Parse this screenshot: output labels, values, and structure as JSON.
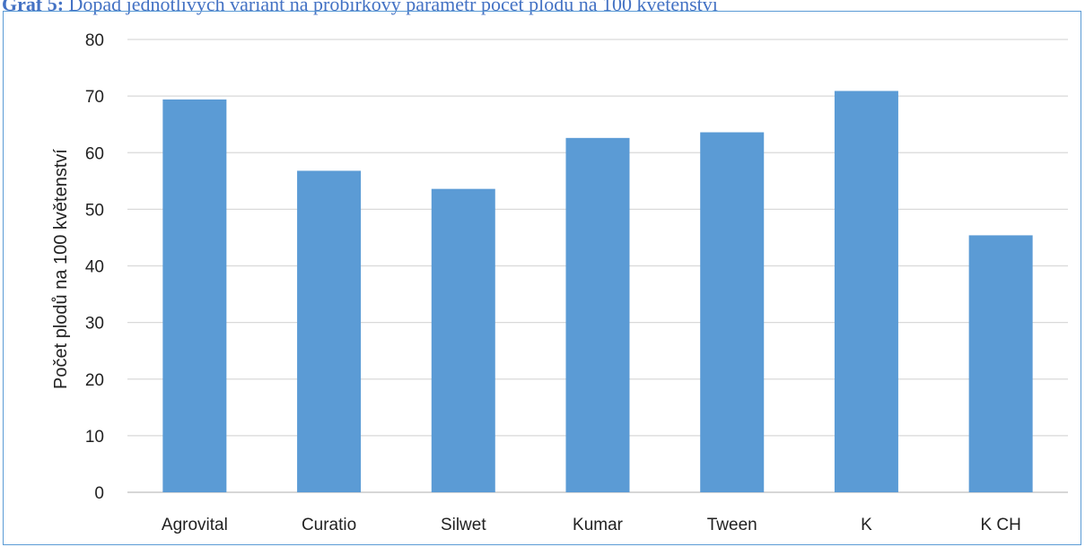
{
  "caption": {
    "lead": "Graf 5:",
    "text": " Dopad jednotlivých variant na probírkový parametr počet plodů na 100 květenství"
  },
  "chart_data": {
    "type": "bar",
    "title": "",
    "xlabel": "",
    "ylabel": "Počet plodů na 100 květenství",
    "categories": [
      "Agrovital",
      "Curatio",
      "Silwet",
      "Kumar",
      "Tween",
      "K",
      "K CH"
    ],
    "values": [
      69.4,
      56.8,
      53.6,
      62.6,
      63.6,
      70.9,
      45.4
    ],
    "ylim": [
      0,
      80
    ],
    "yticks": [
      0,
      10,
      20,
      30,
      40,
      50,
      60,
      70,
      80
    ],
    "grid": true,
    "legend": "none",
    "colors": {
      "bar": "#5b9bd5",
      "grid": "#d9d9d9",
      "axis": "#bfbfbf"
    }
  }
}
